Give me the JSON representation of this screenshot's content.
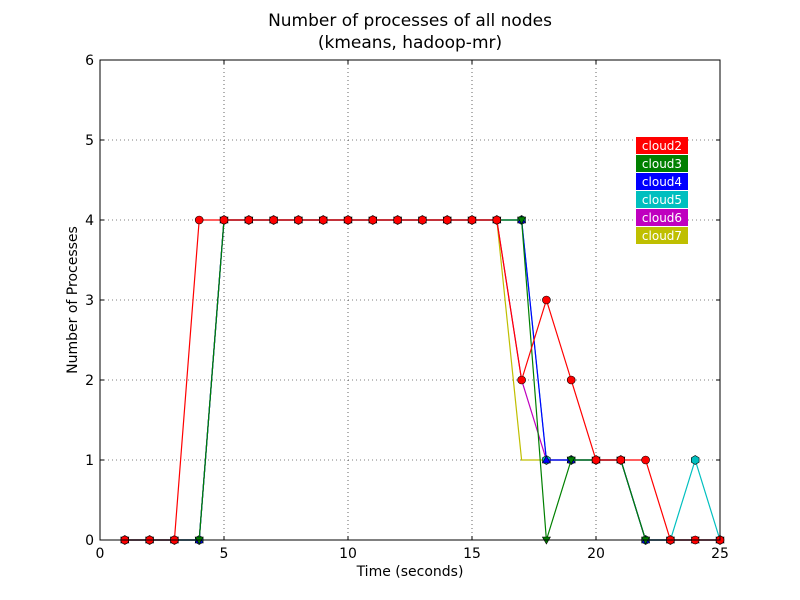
{
  "chart_data": {
    "type": "line",
    "title": "Number of processes of all nodes",
    "subtitle": "(kmeans, hadoop-mr)",
    "xlabel": "Time (seconds)",
    "ylabel": "Number of Processes",
    "xlim": [
      0,
      25
    ],
    "ylim": [
      0,
      6
    ],
    "xticks": [
      0,
      5,
      10,
      15,
      20,
      25
    ],
    "yticks": [
      0,
      1,
      2,
      3,
      4,
      5,
      6
    ],
    "grid": true,
    "legend_position": "top-right",
    "series": [
      {
        "name": "cloud7",
        "color": "#bfbf00",
        "x": [
          1,
          2,
          3,
          4,
          5,
          6,
          7,
          8,
          9,
          10,
          11,
          12,
          13,
          14,
          15,
          16,
          17,
          18,
          19,
          20,
          21,
          22,
          23,
          24,
          25
        ],
        "values": [
          0,
          0,
          0,
          0,
          4,
          4,
          4,
          4,
          4,
          4,
          4,
          4,
          4,
          4,
          4,
          4,
          1,
          1,
          1,
          1,
          1,
          0,
          0,
          0,
          0
        ]
      },
      {
        "name": "cloud6",
        "color": "#bf00bf",
        "x": [
          1,
          2,
          3,
          4,
          5,
          6,
          7,
          8,
          9,
          10,
          11,
          12,
          13,
          14,
          15,
          16,
          17,
          18,
          19,
          20,
          21,
          22,
          23,
          24,
          25
        ],
        "values": [
          0,
          0,
          0,
          0,
          4,
          4,
          4,
          4,
          4,
          4,
          4,
          4,
          4,
          4,
          4,
          4,
          2,
          1,
          1,
          1,
          1,
          0,
          0,
          0,
          0
        ]
      },
      {
        "name": "cloud5",
        "color": "#00bfbf",
        "x": [
          1,
          2,
          3,
          4,
          5,
          6,
          7,
          8,
          9,
          10,
          11,
          12,
          13,
          14,
          15,
          16,
          17,
          18,
          19,
          20,
          21,
          22,
          23,
          24,
          25
        ],
        "values": [
          0,
          0,
          0,
          0,
          4,
          4,
          4,
          4,
          4,
          4,
          4,
          4,
          4,
          4,
          4,
          4,
          4,
          1,
          1,
          1,
          1,
          0,
          0,
          1,
          0
        ]
      },
      {
        "name": "cloud4",
        "color": "#0000ff",
        "x": [
          1,
          2,
          3,
          4,
          5,
          6,
          7,
          8,
          9,
          10,
          11,
          12,
          13,
          14,
          15,
          16,
          17,
          18,
          19,
          20,
          21,
          22,
          23,
          24,
          25
        ],
        "values": [
          0,
          0,
          0,
          0,
          4,
          4,
          4,
          4,
          4,
          4,
          4,
          4,
          4,
          4,
          4,
          4,
          4,
          1,
          1,
          1,
          1,
          0,
          0,
          0,
          0
        ]
      },
      {
        "name": "cloud3",
        "color": "#008000",
        "x": [
          1,
          2,
          3,
          4,
          5,
          6,
          7,
          8,
          9,
          10,
          11,
          12,
          13,
          14,
          15,
          16,
          17,
          18,
          19,
          20,
          21,
          22,
          23,
          24,
          25
        ],
        "values": [
          0,
          0,
          0,
          0,
          4,
          4,
          4,
          4,
          4,
          4,
          4,
          4,
          4,
          4,
          4,
          4,
          4,
          0,
          1,
          1,
          1,
          0,
          0,
          0,
          0
        ]
      },
      {
        "name": "cloud2",
        "color": "#ff0000",
        "x": [
          1,
          2,
          3,
          4,
          5,
          6,
          7,
          8,
          9,
          10,
          11,
          12,
          13,
          14,
          15,
          16,
          17,
          18,
          19,
          20,
          21,
          22,
          23,
          24,
          25
        ],
        "values": [
          0,
          0,
          0,
          4,
          4,
          4,
          4,
          4,
          4,
          4,
          4,
          4,
          4,
          4,
          4,
          4,
          2,
          3,
          2,
          1,
          1,
          1,
          0,
          0,
          0
        ]
      }
    ],
    "legend": [
      {
        "name": "cloud2",
        "color": "#ff0000"
      },
      {
        "name": "cloud3",
        "color": "#008000"
      },
      {
        "name": "cloud4",
        "color": "#0000ff"
      },
      {
        "name": "cloud5",
        "color": "#00bfbf"
      },
      {
        "name": "cloud6",
        "color": "#bf00bf"
      },
      {
        "name": "cloud7",
        "color": "#bfbf00"
      }
    ]
  }
}
